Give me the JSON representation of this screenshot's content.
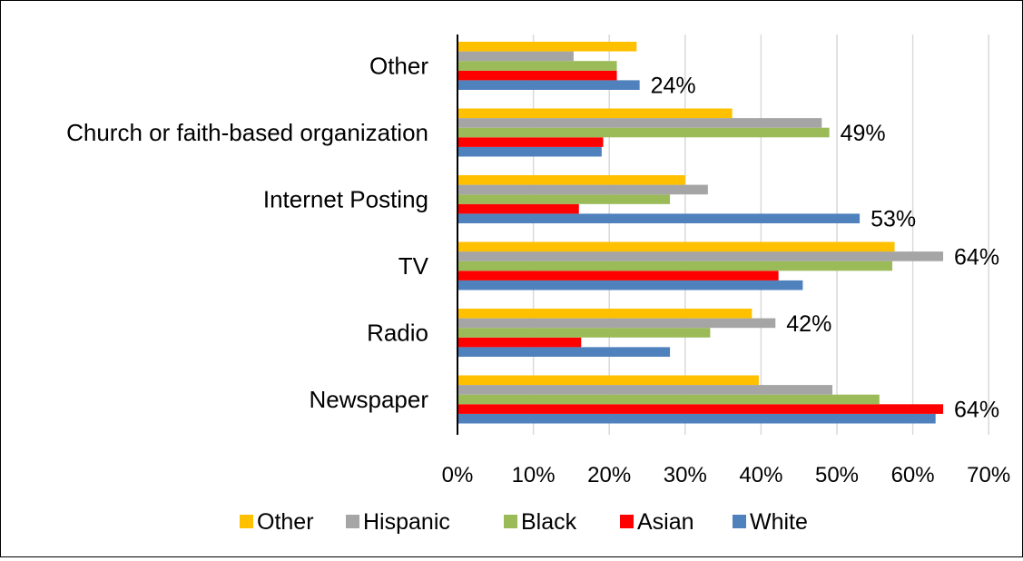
{
  "chart_data": {
    "type": "bar",
    "orientation": "horizontal",
    "categories": [
      "Newspaper",
      "Radio",
      "TV",
      "Internet Posting",
      "Church or faith-based organization",
      "Other"
    ],
    "series": [
      {
        "name": "White",
        "color": "#4f81bd",
        "values": [
          63,
          28,
          45.5,
          53,
          19,
          24
        ]
      },
      {
        "name": "Asian",
        "color": "#ff0000",
        "values": [
          64,
          16.3,
          42.3,
          16,
          19.2,
          21
        ]
      },
      {
        "name": "Black",
        "color": "#9bbb59",
        "values": [
          55.6,
          33.3,
          57.3,
          28,
          49,
          21
        ]
      },
      {
        "name": "Hispanic",
        "color": "#a5a5a5",
        "values": [
          49.4,
          41.9,
          64,
          33,
          48,
          15.3
        ]
      },
      {
        "name": "Other",
        "color": "#ffc000",
        "values": [
          39.7,
          38.8,
          57.6,
          30,
          36.2,
          23.6
        ]
      }
    ],
    "data_labels": [
      {
        "category": "Newspaper",
        "text": "64%"
      },
      {
        "category": "Radio",
        "text": "42%"
      },
      {
        "category": "TV",
        "text": "64%"
      },
      {
        "category": "Internet Posting",
        "text": "53%"
      },
      {
        "category": "Church or faith-based organization",
        "text": "49%"
      },
      {
        "category": "Other",
        "text": "24%"
      }
    ],
    "xlim": [
      0,
      70
    ],
    "x_ticks": [
      "0%",
      "10%",
      "20%",
      "30%",
      "40%",
      "50%",
      "60%",
      "70%"
    ],
    "grid": true,
    "legend_position": "bottom",
    "legend": [
      "Other",
      "Hispanic",
      "Black",
      "Asian",
      "White"
    ]
  }
}
